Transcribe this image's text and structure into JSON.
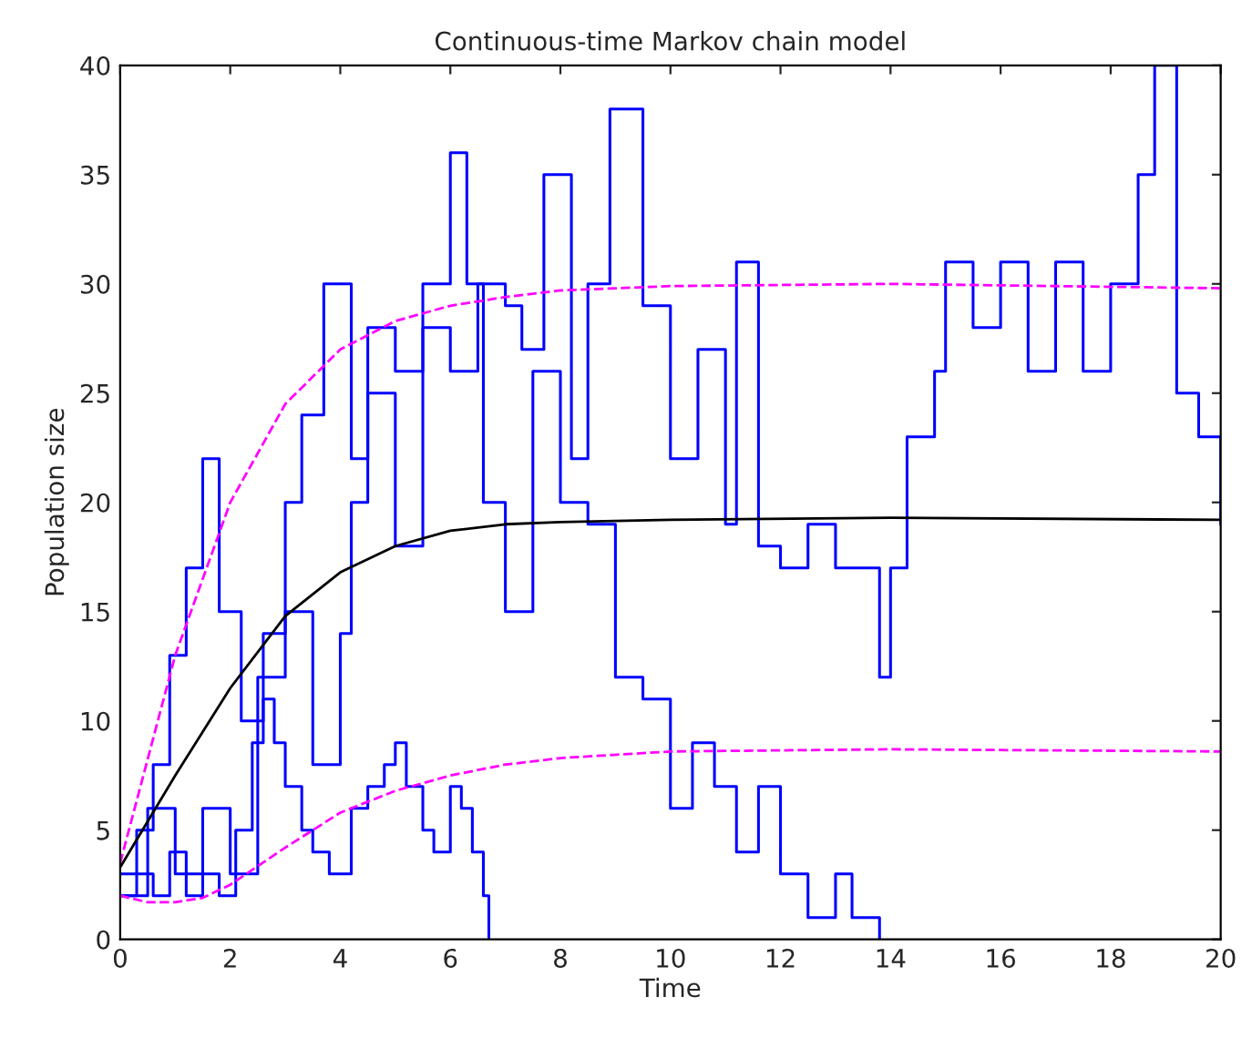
{
  "chart_data": {
    "type": "step",
    "title": "Continuous-time Markov chain model",
    "xlabel": "Time",
    "ylabel": "Population size",
    "xlim": [
      0,
      20
    ],
    "ylim": [
      0,
      40
    ],
    "xticks": [
      0,
      2,
      4,
      6,
      8,
      10,
      12,
      14,
      16,
      18,
      20
    ],
    "yticks": [
      0,
      5,
      10,
      15,
      20,
      25,
      30,
      35,
      40
    ],
    "grid": false,
    "legend": false,
    "series": [
      {
        "color": "#0000ff",
        "line_style": "solid",
        "x": [
          0,
          0.3,
          0.6,
          0.9,
          1.2,
          1.5,
          1.8,
          2.1,
          2.4,
          2.6,
          2.8,
          3.0,
          3.3,
          3.5,
          3.8,
          4.2,
          4.5,
          4.8,
          5.0,
          5.2,
          5.5,
          5.7,
          6.0,
          6.2,
          6.4,
          6.6,
          6.7
        ],
        "values": [
          2,
          3,
          2,
          4,
          2,
          3,
          2,
          5,
          9,
          11,
          9,
          7,
          5,
          4,
          3,
          6,
          7,
          8,
          9,
          7,
          5,
          4,
          7,
          6,
          4,
          2,
          0
        ]
      },
      {
        "color": "#0000ff",
        "line_style": "solid",
        "x": [
          0,
          0.3,
          0.6,
          0.9,
          1.2,
          1.5,
          1.8,
          2.2,
          2.6,
          3.0,
          3.3,
          3.7,
          4.2,
          4.5,
          5.0,
          5.5,
          6.0,
          6.3,
          6.6,
          7.0,
          7.5,
          8.0,
          8.5,
          9.0,
          9.5,
          10.0,
          10.4,
          10.8,
          11.2,
          11.6,
          12.0,
          12.5,
          13.0,
          13.3,
          13.8
        ],
        "values": [
          3,
          5,
          8,
          13,
          17,
          22,
          15,
          10,
          14,
          20,
          24,
          30,
          22,
          28,
          26,
          30,
          36,
          30,
          20,
          15,
          26,
          20,
          19,
          12,
          11,
          6,
          9,
          7,
          4,
          7,
          3,
          1,
          3,
          1,
          0
        ]
      },
      {
        "color": "#0000ff",
        "line_style": "solid",
        "x": [
          0,
          0.5,
          1.0,
          1.5,
          2.0,
          2.5,
          3.0,
          3.5,
          4.0,
          4.2,
          4.5,
          5.0,
          5.5,
          6.0,
          6.5,
          7.0,
          7.3,
          7.7,
          8.2,
          8.5,
          8.9,
          9.5,
          10.0,
          10.5,
          11.0,
          11.2,
          11.6,
          12.0,
          12.5,
          13.0,
          13.5,
          13.8,
          14.0,
          14.3,
          14.8,
          15.0,
          15.5,
          16.0,
          16.5,
          17.0,
          17.5,
          18.0,
          18.5,
          18.8,
          19.2,
          19.6,
          20.0
        ],
        "values": [
          2,
          6,
          3,
          6,
          3,
          12,
          15,
          8,
          14,
          20,
          25,
          18,
          28,
          26,
          30,
          29,
          27,
          35,
          22,
          30,
          38,
          29,
          22,
          27,
          19,
          31,
          18,
          17,
          19,
          17,
          17,
          12,
          17,
          23,
          26,
          31,
          28,
          31,
          26,
          31,
          26,
          30,
          35,
          40,
          25,
          23,
          19
        ]
      },
      {
        "type": "line",
        "color": "#000000",
        "line_style": "solid",
        "x": [
          0,
          1,
          2,
          3,
          4,
          5,
          6,
          7,
          8,
          10,
          14,
          20
        ],
        "values": [
          3.3,
          7.5,
          11.5,
          14.8,
          16.8,
          18,
          18.7,
          19,
          19.1,
          19.2,
          19.3,
          19.2
        ]
      },
      {
        "type": "line",
        "color": "#ff00ff",
        "line_style": "dashed",
        "x": [
          0,
          1,
          2,
          3,
          4,
          5,
          6,
          7,
          8,
          10,
          14,
          20
        ],
        "values": [
          3.5,
          13,
          20,
          24.5,
          27,
          28.3,
          29,
          29.4,
          29.7,
          29.9,
          30,
          29.8
        ]
      },
      {
        "type": "line",
        "color": "#ff00ff",
        "line_style": "dashed",
        "x": [
          0,
          0.5,
          1,
          1.5,
          2,
          3,
          4,
          5,
          6,
          7,
          8,
          10,
          14,
          20
        ],
        "values": [
          2,
          1.7,
          1.7,
          1.9,
          2.5,
          4.2,
          5.8,
          6.8,
          7.5,
          8,
          8.3,
          8.6,
          8.7,
          8.6
        ]
      }
    ]
  }
}
